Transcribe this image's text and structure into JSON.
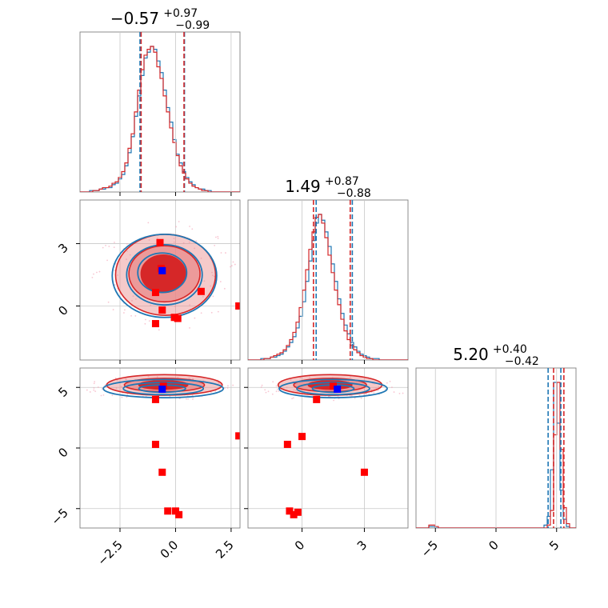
{
  "chart_data": {
    "type": "corner",
    "colors": {
      "blue": "#1f77b4",
      "red": "#d62728",
      "red_fill": "#e88a8a",
      "marker_red": "#ff0000",
      "marker_blue": "#0000ff",
      "pink_scatter": "#f4a0b4"
    },
    "parameters": [
      {
        "title_main": "−0.57",
        "title_sup": "+0.97",
        "title_sub": "−0.99",
        "range": [
          -4.3,
          2.9
        ],
        "ticks": [
          -2.5,
          0.0,
          2.5
        ],
        "tick_labels": [
          "−2.5",
          "0.0",
          "2.5"
        ]
      },
      {
        "title_main": "1.49",
        "title_sup": "+0.87",
        "title_sub": "−0.88",
        "range": [
          -2.6,
          5.1
        ],
        "ticks": [
          0,
          3
        ],
        "tick_labels": [
          "0",
          "3"
        ]
      },
      {
        "title_main": "5.20",
        "title_sup": "+0.40",
        "title_sub": "−0.42",
        "range": [
          -6.6,
          6.6
        ],
        "ticks": [
          -5,
          0,
          5
        ],
        "tick_labels": [
          "−5",
          "0",
          "5"
        ]
      }
    ],
    "quantile_lines": {
      "p0": {
        "blue": [
          -1.6,
          0.4
        ],
        "red": [
          -1.55,
          0.38
        ]
      },
      "p1": {
        "blue": [
          0.68,
          2.42
        ],
        "red": [
          0.55,
          2.32
        ]
      },
      "p2": {
        "blue": [
          4.3,
          5.35
        ],
        "red": [
          4.75,
          5.6
        ]
      }
    },
    "hist_blue": {
      "p0": {
        "start": -4.3,
        "bin": 0.144,
        "counts": [
          0,
          0,
          0,
          1,
          1,
          1,
          2,
          2,
          3,
          3,
          5,
          6,
          9,
          12,
          18,
          27,
          38,
          52,
          66,
          80,
          92,
          96,
          100,
          98,
          90,
          82,
          70,
          58,
          48,
          36,
          26,
          20,
          14,
          10,
          7,
          5,
          3,
          2,
          2,
          1,
          1,
          0,
          0,
          0,
          0,
          0,
          0,
          0,
          0,
          0
        ]
      },
      "p1": {
        "start": -2.6,
        "bin": 0.154,
        "counts": [
          0,
          0,
          0,
          0,
          1,
          1,
          1,
          2,
          2,
          3,
          4,
          6,
          9,
          12,
          16,
          22,
          30,
          40,
          54,
          68,
          82,
          94,
          100,
          96,
          88,
          78,
          66,
          54,
          42,
          32,
          24,
          18,
          12,
          9,
          6,
          4,
          3,
          2,
          1,
          1,
          1,
          0,
          0,
          0,
          0,
          0,
          0,
          0,
          0,
          0
        ]
      },
      "p2": {
        "start": -6.6,
        "bin": 0.264,
        "counts": [
          0,
          0,
          0,
          0,
          1,
          1,
          0,
          0,
          0,
          0,
          0,
          0,
          0,
          0,
          0,
          0,
          0,
          0,
          0,
          0,
          0,
          0,
          0,
          0,
          0,
          0,
          0,
          0,
          0,
          0,
          0,
          0,
          0,
          0,
          0,
          0,
          0,
          0,
          0,
          0,
          2,
          8,
          40,
          100,
          72,
          26,
          6,
          1,
          0,
          0
        ]
      }
    },
    "hist_red": {
      "p0": {
        "start": -4.3,
        "bin": 0.144,
        "counts": [
          0,
          0,
          0,
          0,
          1,
          1,
          2,
          3,
          3,
          4,
          6,
          7,
          10,
          14,
          20,
          30,
          40,
          55,
          70,
          84,
          94,
          98,
          100,
          96,
          86,
          78,
          66,
          55,
          44,
          34,
          25,
          18,
          13,
          9,
          6,
          4,
          3,
          2,
          1,
          1,
          0,
          0,
          0,
          0,
          0,
          0,
          0,
          0,
          0,
          0
        ]
      },
      "p1": {
        "start": -2.6,
        "bin": 0.154,
        "counts": [
          0,
          0,
          0,
          0,
          0,
          1,
          1,
          2,
          3,
          4,
          5,
          7,
          10,
          14,
          19,
          26,
          36,
          48,
          62,
          76,
          88,
          98,
          100,
          94,
          84,
          72,
          60,
          48,
          38,
          28,
          20,
          14,
          10,
          7,
          5,
          3,
          2,
          1,
          1,
          0,
          0,
          0,
          0,
          0,
          0,
          0,
          0,
          0,
          0,
          0
        ]
      },
      "p2": {
        "start": -6.6,
        "bin": 0.264,
        "counts": [
          0,
          0,
          0,
          0,
          2,
          2,
          1,
          0,
          0,
          0,
          0,
          0,
          0,
          0,
          0,
          0,
          0,
          0,
          0,
          0,
          0,
          0,
          0,
          0,
          0,
          0,
          0,
          0,
          0,
          0,
          0,
          0,
          0,
          0,
          0,
          0,
          0,
          0,
          0,
          0,
          0,
          2,
          12,
          64,
          100,
          54,
          14,
          3,
          0,
          0
        ]
      }
    },
    "pairs": [
      {
        "x": 0,
        "y": 1,
        "ellipses_red": [
          {
            "cx": -0.45,
            "cy": 1.5,
            "rx": 2.25,
            "ry": 1.95
          },
          {
            "cx": -0.5,
            "cy": 1.55,
            "rx": 1.6,
            "ry": 1.35
          },
          {
            "cx": -0.55,
            "cy": 1.55,
            "rx": 1.0,
            "ry": 0.9
          }
        ],
        "ellipses_blue": [
          {
            "cx": -0.5,
            "cy": 1.45,
            "rx": 2.35,
            "ry": 2.0
          },
          {
            "cx": -0.5,
            "cy": 1.5,
            "rx": 1.7,
            "ry": 1.45
          },
          {
            "cx": -0.6,
            "cy": 1.6,
            "rx": 1.1,
            "ry": 0.95
          }
        ],
        "markers_red": [
          [
            -0.7,
            3.05
          ],
          [
            -0.65,
            1.8
          ],
          [
            -0.9,
            0.65
          ],
          [
            -0.6,
            -0.2
          ],
          [
            -0.05,
            -0.55
          ],
          [
            0.1,
            -0.6
          ],
          [
            1.15,
            0.7
          ],
          [
            -0.9,
            -0.85
          ],
          [
            2.85,
            0.0
          ]
        ],
        "markers_blue": [
          [
            -0.6,
            1.7
          ]
        ]
      },
      {
        "x": 0,
        "y": 2,
        "ellipses_red": [
          {
            "cx": -0.5,
            "cy": 5.2,
            "rx": 2.6,
            "ry": 0.85
          },
          {
            "cx": -0.5,
            "cy": 5.2,
            "rx": 1.8,
            "ry": 0.55
          },
          {
            "cx": -0.55,
            "cy": 5.2,
            "rx": 1.1,
            "ry": 0.35
          }
        ],
        "ellipses_blue": [
          {
            "cx": -0.55,
            "cy": 4.9,
            "rx": 2.7,
            "ry": 0.75
          },
          {
            "cx": -0.55,
            "cy": 4.9,
            "rx": 1.8,
            "ry": 0.5
          },
          {
            "cx": -0.6,
            "cy": 4.9,
            "rx": 1.05,
            "ry": 0.3
          }
        ],
        "markers_red": [
          [
            -0.9,
            4.0
          ],
          [
            -0.55,
            5.1
          ],
          [
            -0.9,
            0.3
          ],
          [
            -0.6,
            -2.0
          ],
          [
            -0.35,
            -5.2
          ],
          [
            0.0,
            -5.2
          ],
          [
            0.15,
            -5.5
          ],
          [
            2.85,
            1.0
          ]
        ],
        "markers_blue": [
          [
            -0.6,
            4.85
          ]
        ]
      },
      {
        "x": 1,
        "y": 2,
        "ellipses_red": [
          {
            "cx": 1.35,
            "cy": 5.2,
            "rx": 2.5,
            "ry": 0.85
          },
          {
            "cx": 1.35,
            "cy": 5.2,
            "rx": 1.75,
            "ry": 0.55
          },
          {
            "cx": 1.35,
            "cy": 5.2,
            "rx": 1.05,
            "ry": 0.35
          }
        ],
        "ellipses_blue": [
          {
            "cx": 1.5,
            "cy": 4.9,
            "rx": 2.6,
            "ry": 0.75
          },
          {
            "cx": 1.5,
            "cy": 4.9,
            "rx": 1.75,
            "ry": 0.5
          },
          {
            "cx": 1.5,
            "cy": 4.9,
            "rx": 1.0,
            "ry": 0.3
          }
        ],
        "markers_red": [
          [
            0.7,
            4.0
          ],
          [
            1.5,
            5.1
          ],
          [
            -0.7,
            0.3
          ],
          [
            0.0,
            0.95
          ],
          [
            3.0,
            -2.0
          ],
          [
            -0.6,
            -5.2
          ],
          [
            -0.4,
            -5.5
          ],
          [
            -0.2,
            -5.3
          ]
        ],
        "markers_blue": [
          [
            1.7,
            4.85
          ]
        ]
      }
    ]
  }
}
